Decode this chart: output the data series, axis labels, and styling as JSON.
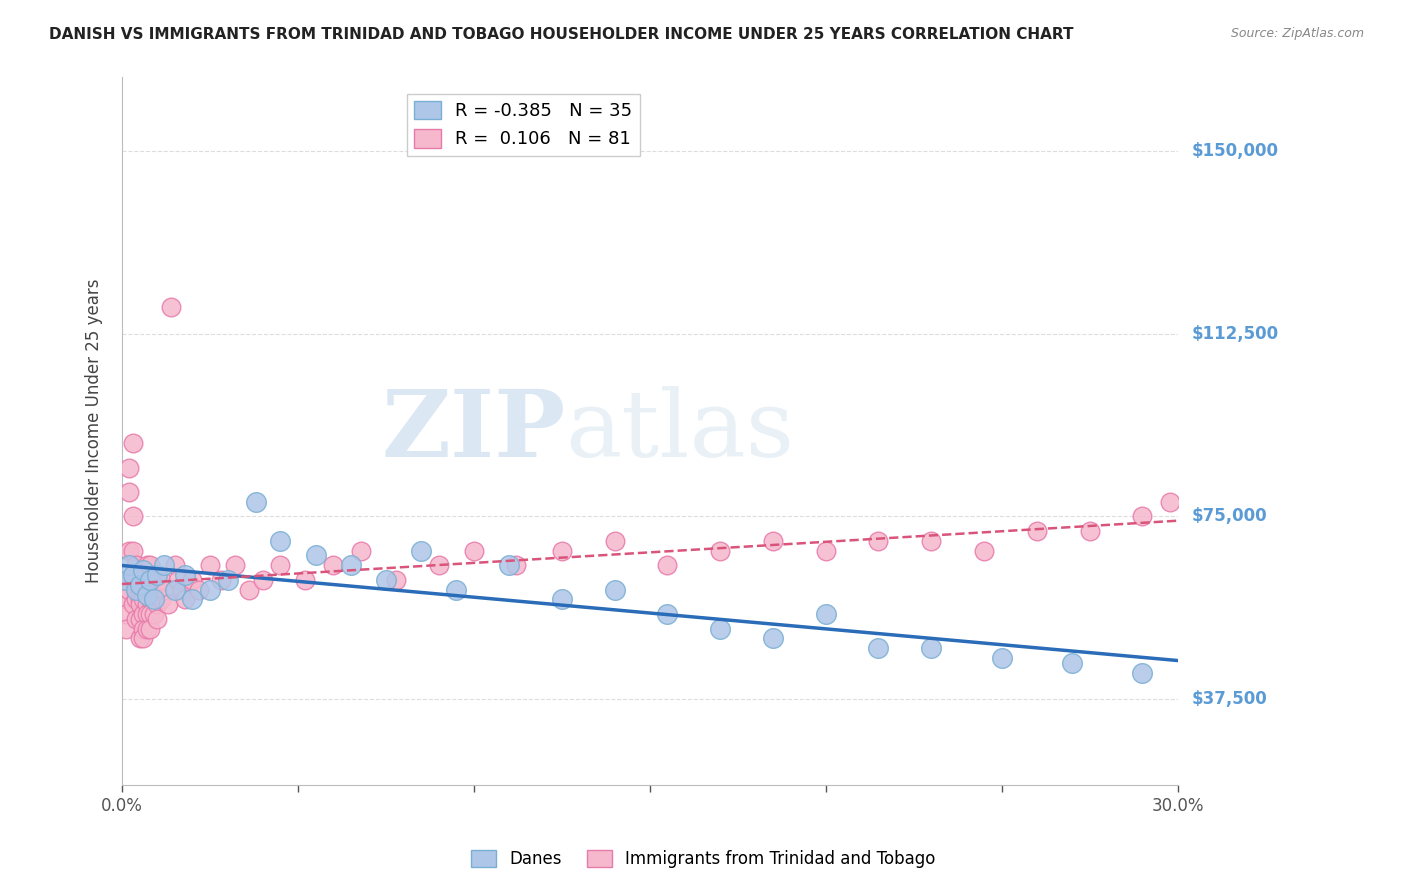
{
  "title": "DANISH VS IMMIGRANTS FROM TRINIDAD AND TOBAGO HOUSEHOLDER INCOME UNDER 25 YEARS CORRELATION CHART",
  "source": "Source: ZipAtlas.com",
  "ylabel": "Householder Income Under 25 years",
  "watermark_zip": "ZIP",
  "watermark_atlas": "atlas",
  "xlim": [
    0.0,
    0.3
  ],
  "ylim": [
    20000,
    165000
  ],
  "yticks": [
    37500,
    75000,
    112500,
    150000
  ],
  "ytick_labels": [
    "$37,500",
    "$75,000",
    "$112,500",
    "$150,000"
  ],
  "xticks": [
    0.0,
    0.05,
    0.1,
    0.15,
    0.2,
    0.25,
    0.3
  ],
  "xtick_labels": [
    "0.0%",
    "",
    "",
    "",
    "",
    "",
    "30.0%"
  ],
  "danes_color": "#aec6e8",
  "danes_edge_color": "#7aafd4",
  "tt_color": "#f5b8cc",
  "tt_edge_color": "#e87aaa",
  "danes_line_color": "#2b6cb8",
  "tt_line_color": "#d9547a",
  "danes_R": -0.385,
  "danes_N": 35,
  "tt_R": 0.106,
  "tt_N": 81,
  "legend_label_danes": "Danes",
  "legend_label_tt": "Immigrants from Trinidad and Tobago",
  "danes_x": [
    0.001,
    0.002,
    0.003,
    0.004,
    0.005,
    0.006,
    0.007,
    0.008,
    0.009,
    0.01,
    0.012,
    0.015,
    0.018,
    0.02,
    0.025,
    0.03,
    0.038,
    0.045,
    0.055,
    0.065,
    0.075,
    0.085,
    0.095,
    0.11,
    0.125,
    0.14,
    0.155,
    0.17,
    0.185,
    0.2,
    0.215,
    0.23,
    0.25,
    0.27,
    0.29
  ],
  "danes_y": [
    62000,
    65000,
    63000,
    60000,
    61000,
    64000,
    59000,
    62000,
    58000,
    63000,
    65000,
    60000,
    63000,
    58000,
    60000,
    62000,
    78000,
    70000,
    67000,
    65000,
    62000,
    68000,
    60000,
    65000,
    58000,
    60000,
    55000,
    52000,
    50000,
    55000,
    48000,
    48000,
    46000,
    45000,
    43000
  ],
  "tt_x": [
    0.001,
    0.001,
    0.001,
    0.002,
    0.002,
    0.002,
    0.002,
    0.003,
    0.003,
    0.003,
    0.003,
    0.003,
    0.004,
    0.004,
    0.004,
    0.004,
    0.005,
    0.005,
    0.005,
    0.005,
    0.005,
    0.005,
    0.006,
    0.006,
    0.006,
    0.006,
    0.006,
    0.007,
    0.007,
    0.007,
    0.007,
    0.007,
    0.008,
    0.008,
    0.008,
    0.008,
    0.008,
    0.009,
    0.009,
    0.009,
    0.01,
    0.01,
    0.01,
    0.01,
    0.011,
    0.011,
    0.012,
    0.013,
    0.014,
    0.015,
    0.016,
    0.017,
    0.018,
    0.02,
    0.022,
    0.025,
    0.028,
    0.032,
    0.036,
    0.04,
    0.045,
    0.052,
    0.06,
    0.068,
    0.078,
    0.09,
    0.1,
    0.112,
    0.125,
    0.14,
    0.155,
    0.17,
    0.185,
    0.2,
    0.215,
    0.23,
    0.245,
    0.26,
    0.275,
    0.29,
    0.298
  ],
  "tt_y": [
    58000,
    55000,
    52000,
    85000,
    80000,
    68000,
    60000,
    90000,
    75000,
    68000,
    62000,
    57000,
    65000,
    60000,
    58000,
    54000,
    58000,
    63000,
    60000,
    57000,
    54000,
    50000,
    62000,
    58000,
    55000,
    52000,
    50000,
    65000,
    60000,
    57000,
    55000,
    52000,
    65000,
    62000,
    58000,
    55000,
    52000,
    62000,
    58000,
    55000,
    62000,
    60000,
    57000,
    54000,
    62000,
    58000,
    60000,
    57000,
    118000,
    65000,
    62000,
    60000,
    58000,
    62000,
    60000,
    65000,
    62000,
    65000,
    60000,
    62000,
    65000,
    62000,
    65000,
    68000,
    62000,
    65000,
    68000,
    65000,
    68000,
    70000,
    65000,
    68000,
    70000,
    68000,
    70000,
    70000,
    68000,
    72000,
    72000,
    75000,
    78000
  ],
  "background_color": "#ffffff",
  "grid_color": "#dddddd",
  "title_color": "#222222",
  "axis_color": "#bbbbbb",
  "right_label_color": "#5b9bd5",
  "zip_color": "#b0cce8",
  "atlas_color": "#c8d8e8"
}
